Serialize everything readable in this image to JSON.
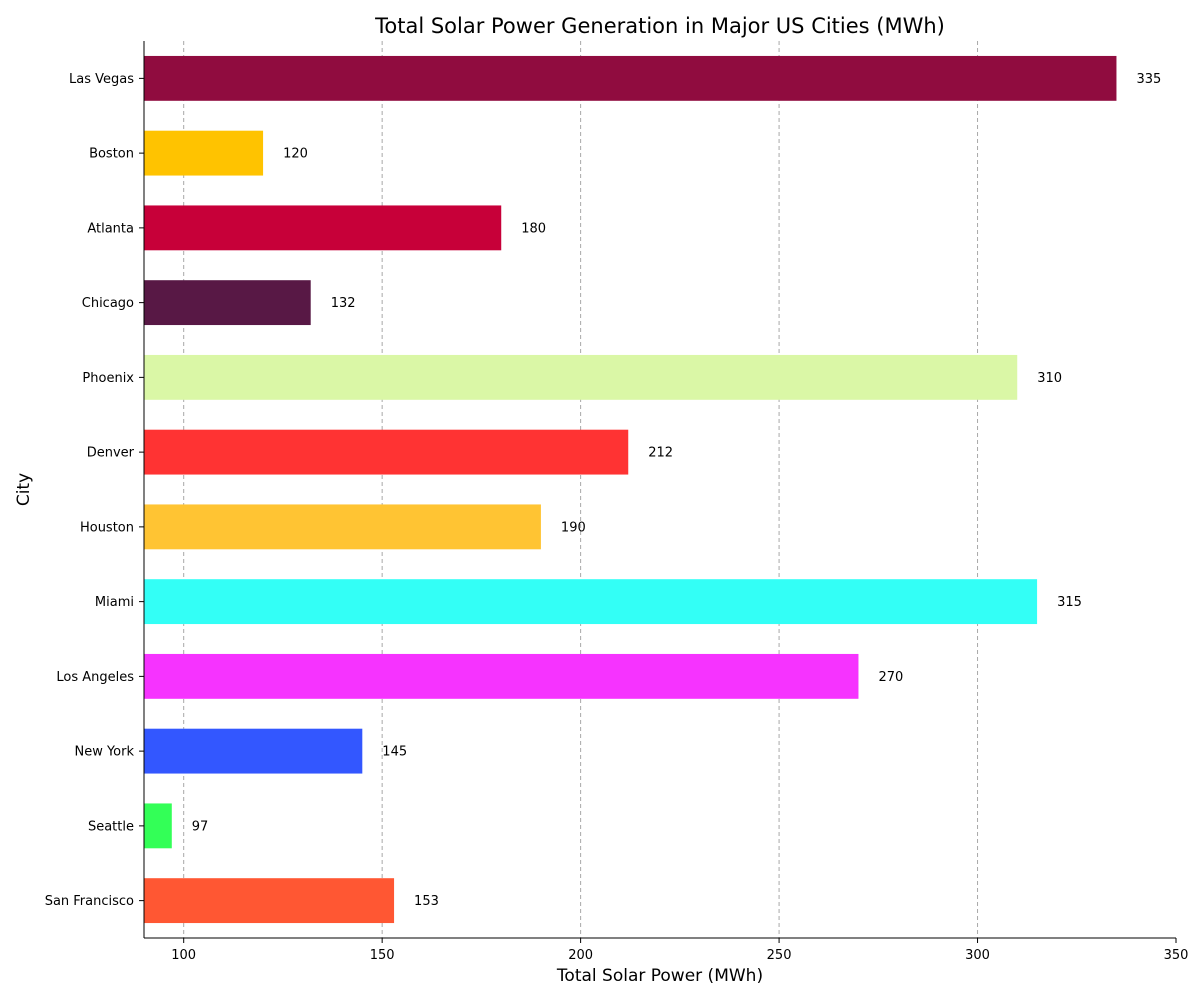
{
  "chart_data": {
    "type": "bar",
    "orientation": "horizontal",
    "title": "Total Solar Power Generation in Major US Cities (MWh)",
    "xlabel": "Total Solar Power (MWh)",
    "ylabel": "City",
    "xlim": [
      90,
      350
    ],
    "xticks": [
      100,
      150,
      200,
      250,
      300,
      350
    ],
    "grid": "x-dashed",
    "categories": [
      "San Francisco",
      "Seattle",
      "New York",
      "Los Angeles",
      "Miami",
      "Houston",
      "Denver",
      "Phoenix",
      "Chicago",
      "Atlanta",
      "Boston",
      "Las Vegas"
    ],
    "values": [
      153,
      97,
      145,
      270,
      315,
      190,
      212,
      310,
      132,
      180,
      120,
      335
    ],
    "colors": [
      "#ff5733",
      "#33ff57",
      "#3357ff",
      "#f633ff",
      "#33fff6",
      "#ffc433",
      "#ff3333",
      "#daf7a6",
      "#581845",
      "#c70039",
      "#ffc300",
      "#900c3f"
    ]
  }
}
